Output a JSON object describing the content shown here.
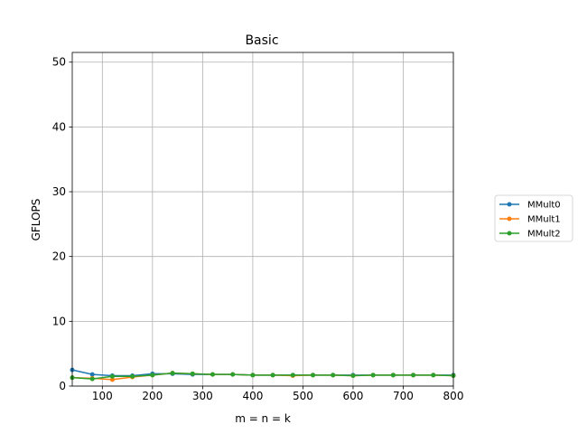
{
  "chart_data": {
    "type": "line",
    "title": "Basic",
    "xlabel": "m = n = k",
    "ylabel": "GFLOPS",
    "xlim": [
      40,
      800
    ],
    "ylim": [
      0,
      51.5
    ],
    "xticks": [
      100,
      200,
      300,
      400,
      500,
      600,
      700,
      800
    ],
    "yticks": [
      0,
      10,
      20,
      30,
      40,
      50
    ],
    "xtick_labels": [
      "100",
      "200",
      "300",
      "400",
      "500",
      "600",
      "700",
      "800"
    ],
    "ytick_labels": [
      "0",
      "10",
      "20",
      "30",
      "40",
      "50"
    ],
    "grid": true,
    "legend_position": "outside-right",
    "x": [
      40,
      80,
      120,
      160,
      200,
      240,
      280,
      320,
      360,
      400,
      440,
      480,
      520,
      560,
      600,
      640,
      680,
      720,
      760,
      800
    ],
    "series": [
      {
        "name": "MMult0",
        "color": "#1f77b4",
        "values": [
          2.5,
          1.8,
          1.6,
          1.6,
          1.9,
          1.9,
          1.8,
          1.8,
          1.8,
          1.7,
          1.7,
          1.7,
          1.7,
          1.7,
          1.7,
          1.7,
          1.7,
          1.7,
          1.7,
          1.7
        ]
      },
      {
        "name": "MMult1",
        "color": "#ff7f0e",
        "values": [
          1.3,
          1.2,
          1.0,
          1.4,
          1.7,
          2.0,
          1.9,
          1.8,
          1.8,
          1.7,
          1.7,
          1.6,
          1.7,
          1.7,
          1.6,
          1.7,
          1.7,
          1.7,
          1.7,
          1.6
        ]
      },
      {
        "name": "MMult2",
        "color": "#2ca02c",
        "values": [
          1.3,
          1.1,
          1.5,
          1.5,
          1.7,
          2.0,
          1.9,
          1.8,
          1.8,
          1.7,
          1.7,
          1.7,
          1.7,
          1.7,
          1.6,
          1.7,
          1.7,
          1.7,
          1.7,
          1.6
        ]
      }
    ]
  }
}
